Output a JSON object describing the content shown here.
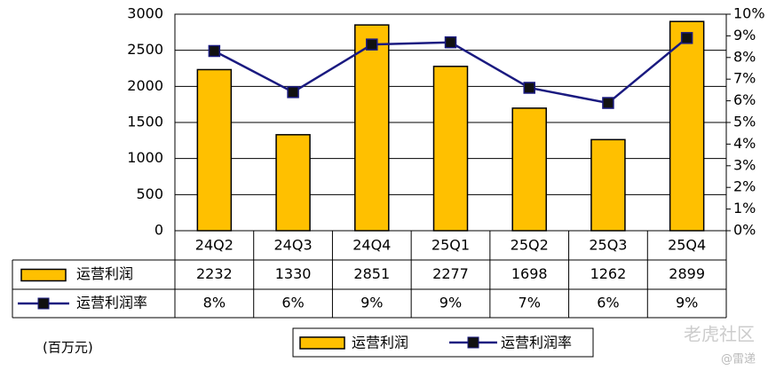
{
  "chart_data": {
    "type": "bar",
    "categories": [
      "24Q2",
      "24Q3",
      "24Q4",
      "25Q1",
      "25Q2",
      "25Q3",
      "25Q4"
    ],
    "series": [
      {
        "name": "运营利润",
        "type": "bar",
        "color": "#FFC000",
        "values": [
          2232,
          1330,
          2851,
          2277,
          1698,
          1262,
          2899
        ]
      },
      {
        "name": "运营利润率",
        "type": "line",
        "axis": "y2",
        "color": "#1A1A80",
        "values": [
          8.3,
          6.4,
          8.6,
          8.7,
          6.6,
          5.9,
          8.9
        ],
        "value_labels": [
          "8%",
          "6%",
          "9%",
          "9%",
          "7%",
          "6%",
          "9%"
        ]
      }
    ],
    "ylim": [
      0,
      3000
    ],
    "yticks": [
      0,
      500,
      1000,
      1500,
      2000,
      2500,
      3000
    ],
    "y2lim": [
      0,
      10
    ],
    "y2ticks": [
      {
        "value": 0,
        "label": "0%"
      },
      {
        "value": 1,
        "label": "1%"
      },
      {
        "value": 2,
        "label": "2%"
      },
      {
        "value": 3,
        "label": "3%"
      },
      {
        "value": 4,
        "label": "4%"
      },
      {
        "value": 5,
        "label": "5%"
      },
      {
        "value": 6,
        "label": "6%"
      },
      {
        "value": 7,
        "label": "7%"
      },
      {
        "value": 8,
        "label": "8%"
      },
      {
        "value": 9,
        "label": "9%"
      },
      {
        "value": 10,
        "label": "10%"
      }
    ],
    "grid": true,
    "data_table": true,
    "legend": "bottom",
    "unit_note": "(百万元)",
    "watermark": "老虎社区",
    "source_mark": "@雷递"
  }
}
